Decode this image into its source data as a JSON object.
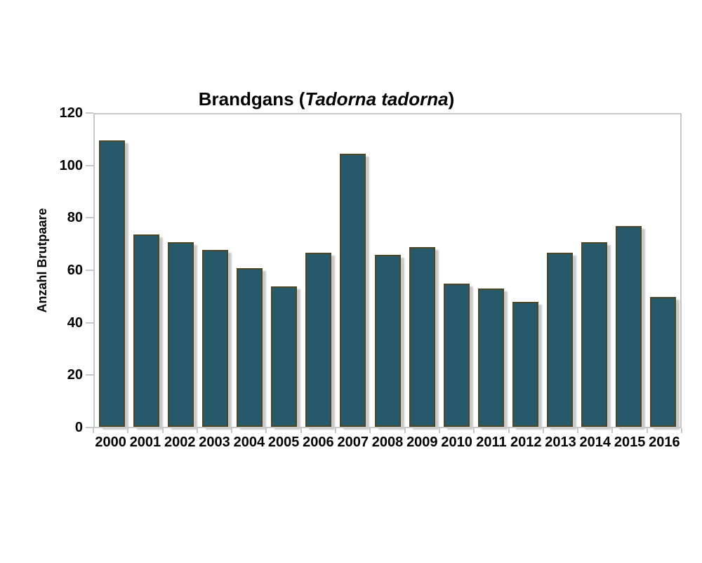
{
  "chart_data": {
    "type": "bar",
    "title_text": "Brandgans (Tadorna tadorna)",
    "title_prefix": "Brandgans (",
    "title_species": "Tadorna tadorna",
    "title_suffix": ")",
    "ylabel": "Anzahl Brutpaare",
    "xlabel": "",
    "categories": [
      "2000",
      "2001",
      "2002",
      "2003",
      "2004",
      "2005",
      "2006",
      "2007",
      "2008",
      "2009",
      "2010",
      "2011",
      "2012",
      "2013",
      "2014",
      "2015",
      "2016"
    ],
    "values": [
      110,
      74,
      71,
      68,
      61,
      54,
      67,
      105,
      66,
      69,
      55,
      53,
      48,
      67,
      71,
      77,
      50
    ],
    "ylim": [
      0,
      120
    ],
    "yticks": [
      0,
      20,
      40,
      60,
      80,
      100,
      120
    ],
    "grid": false,
    "legend": false,
    "colors": {
      "bar_fill": "#265a6b",
      "bar_border": "#4b4627",
      "bar_shadow": "#c9c9c9",
      "axis": "#c6c9ca",
      "text": "#000000",
      "background": "#ffffff"
    }
  }
}
